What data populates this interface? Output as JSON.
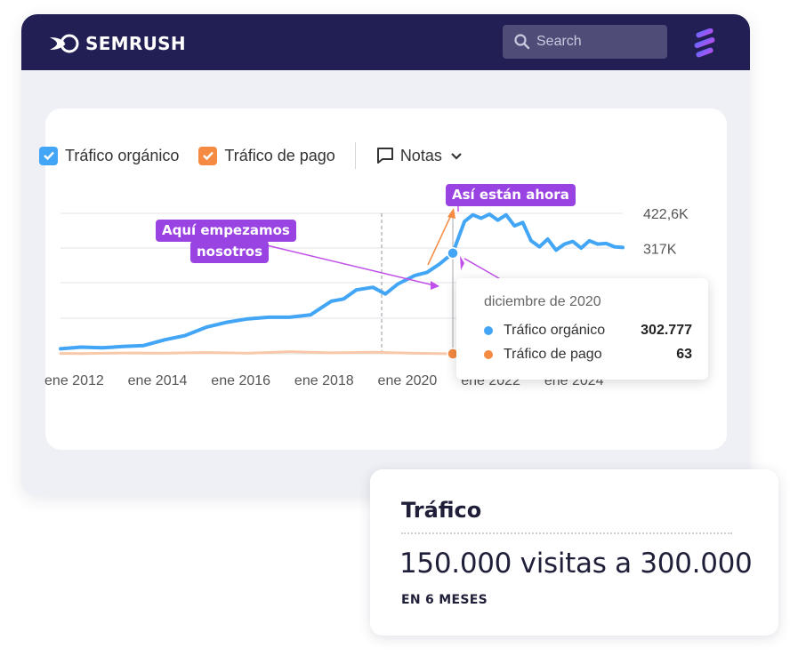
{
  "header": {
    "brand": "SEMRUSH",
    "search_placeholder": "Search"
  },
  "legend": {
    "organic_label": "Tráfico orgánico",
    "paid_label": "Tráfico de pago",
    "notes_label": "Notas"
  },
  "colors": {
    "organic": "#42a5f5",
    "paid": "#f58a42",
    "callout": "#9a43e3",
    "header_bg": "#211f54"
  },
  "callouts": {
    "start": [
      "Aquí empezamos",
      "nosotros"
    ],
    "now": "Así están ahora"
  },
  "tooltip": {
    "date": "diciembre de 2020",
    "organic_label": "Tráfico orgánico",
    "organic_value": "302.777",
    "paid_label": "Tráfico de pago",
    "paid_value": "63"
  },
  "metric": {
    "title": "Tráfico",
    "value": "150.000 visitas a 300.000",
    "sub": "EN 6 MESES"
  },
  "chart_data": {
    "type": "line",
    "title": "",
    "xlabel": "",
    "ylabel": "",
    "x_tick_labels": [
      "ene 2012",
      "ene 2014",
      "ene 2016",
      "ene 2018",
      "ene 2020",
      "ene 2022",
      "ene 2024"
    ],
    "y_tick_labels": [
      "422,6K",
      "317K"
    ],
    "ylim": [
      0,
      422600
    ],
    "xlim": [
      2011.5,
      2025.0
    ],
    "grid": true,
    "legend_position": "top-left",
    "series": [
      {
        "name": "Tráfico orgánico",
        "x": [
          2011.5,
          2012.0,
          2012.5,
          2013.0,
          2013.5,
          2014.0,
          2014.5,
          2015.0,
          2015.5,
          2016.0,
          2016.5,
          2017.0,
          2017.5,
          2018.0,
          2018.3,
          2018.6,
          2019.0,
          2019.3,
          2019.6,
          2020.0,
          2020.3,
          2020.6,
          2020.92,
          2021.0,
          2021.2,
          2021.4,
          2021.6,
          2021.8,
          2022.0,
          2022.2,
          2022.4,
          2022.6,
          2022.8,
          2023.0,
          2023.2,
          2023.4,
          2023.6,
          2023.8,
          2024.0,
          2024.2,
          2024.4,
          2024.6,
          2024.8,
          2025.0
        ],
        "y": [
          15000,
          20000,
          18000,
          22000,
          25000,
          42000,
          55000,
          80000,
          95000,
          105000,
          110000,
          110000,
          117000,
          158000,
          165000,
          192000,
          200000,
          180000,
          210000,
          235000,
          245000,
          270000,
          302777,
          330000,
          398000,
          418000,
          408000,
          420000,
          402000,
          418000,
          385000,
          395000,
          340000,
          322000,
          345000,
          312000,
          330000,
          338000,
          318000,
          340000,
          330000,
          332000,
          322000,
          320000
        ]
      },
      {
        "name": "Tráfico de pago",
        "x": [
          2011.5,
          2012.0,
          2013.0,
          2014.0,
          2015.0,
          2016.0,
          2017.0,
          2018.0,
          2019.0,
          2020.0,
          2020.92
        ],
        "y": [
          1200,
          600,
          2500,
          1500,
          4000,
          1500,
          6500,
          3000,
          4500,
          1500,
          63
        ]
      }
    ]
  }
}
